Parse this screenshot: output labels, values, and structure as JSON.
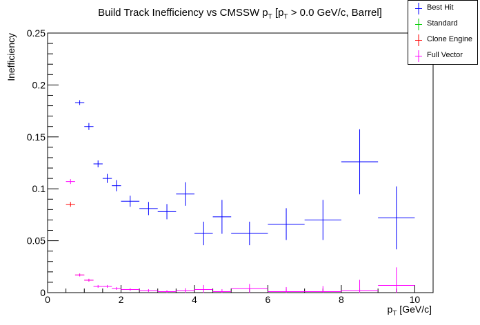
{
  "chart_data": {
    "type": "scatter",
    "title": "Build Track Inefficiency vs CMSSW p_T [p_T > 0.0 GeV/c, Barrel]",
    "title_parts": {
      "main": "Build Track Inefficiency vs CMSSW p",
      "sub1": "T",
      "mid": " [p",
      "sub2": "T",
      "rest": " > 0.0 GeV/c, Barrel]"
    },
    "xlabel": "p_T [GeV/c]",
    "xlabel_parts": {
      "main": "p",
      "sub": "T",
      "rest": " [GeV/c]"
    },
    "ylabel": "Inefficiency",
    "xlim": [
      0,
      10.5
    ],
    "ylim": [
      0,
      0.25
    ],
    "x_ticks": [
      "0",
      "2",
      "4",
      "6",
      "8",
      "10"
    ],
    "y_ticks": [
      "0",
      "0.05",
      "0.1",
      "0.15",
      "0.2",
      "0.25"
    ],
    "grid": false,
    "legend_position": "top-right",
    "series": [
      {
        "name": "Best Hit",
        "color": "#0000ff",
        "points": [
          {
            "x": 0.875,
            "y": 0.183,
            "xerr": 0.125,
            "yerr": 0.002
          },
          {
            "x": 1.125,
            "y": 0.16,
            "xerr": 0.125,
            "yerr": 0.003
          },
          {
            "x": 1.375,
            "y": 0.124,
            "xerr": 0.125,
            "yerr": 0.003
          },
          {
            "x": 1.625,
            "y": 0.11,
            "xerr": 0.125,
            "yerr": 0.004
          },
          {
            "x": 1.875,
            "y": 0.103,
            "xerr": 0.125,
            "yerr": 0.005
          },
          {
            "x": 2.25,
            "y": 0.088,
            "xerr": 0.25,
            "yerr": 0.005
          },
          {
            "x": 2.75,
            "y": 0.081,
            "xerr": 0.25,
            "yerr": 0.006
          },
          {
            "x": 3.25,
            "y": 0.078,
            "xerr": 0.25,
            "yerr": 0.007
          },
          {
            "x": 3.75,
            "y": 0.095,
            "xerr": 0.25,
            "yerr": 0.011
          },
          {
            "x": 4.25,
            "y": 0.057,
            "xerr": 0.25,
            "yerr": 0.011
          },
          {
            "x": 4.75,
            "y": 0.073,
            "xerr": 0.25,
            "yerr": 0.016
          },
          {
            "x": 5.5,
            "y": 0.057,
            "xerr": 0.5,
            "yerr": 0.011
          },
          {
            "x": 6.5,
            "y": 0.066,
            "xerr": 0.5,
            "yerr": 0.015
          },
          {
            "x": 7.5,
            "y": 0.07,
            "xerr": 0.5,
            "yerr": 0.019
          },
          {
            "x": 8.5,
            "y": 0.126,
            "xerr": 0.5,
            "yerr": 0.031
          },
          {
            "x": 9.5,
            "y": 0.072,
            "xerr": 0.5,
            "yerr": 0.03
          }
        ]
      },
      {
        "name": "Standard",
        "color": "#00cc00",
        "points": []
      },
      {
        "name": "Clone Engine",
        "color": "#ff0000",
        "points": [
          {
            "x": 0.625,
            "y": 0.085,
            "xerr": 0.125,
            "yerr": 0.002
          },
          {
            "x": 0.875,
            "y": 0.017,
            "xerr": 0.125,
            "yerr": 0.001
          },
          {
            "x": 1.125,
            "y": 0.012,
            "xerr": 0.125,
            "yerr": 0.001
          }
        ]
      },
      {
        "name": "Full Vector",
        "color": "#ff00ff",
        "points": [
          {
            "x": 0.625,
            "y": 0.107,
            "xerr": 0.125,
            "yerr": 0.002
          },
          {
            "x": 0.875,
            "y": 0.017,
            "xerr": 0.125,
            "yerr": 0.001
          },
          {
            "x": 1.125,
            "y": 0.012,
            "xerr": 0.125,
            "yerr": 0.001
          },
          {
            "x": 1.375,
            "y": 0.006,
            "xerr": 0.125,
            "yerr": 0.001
          },
          {
            "x": 1.625,
            "y": 0.006,
            "xerr": 0.125,
            "yerr": 0.001
          },
          {
            "x": 1.875,
            "y": 0.004,
            "xerr": 0.125,
            "yerr": 0.001
          },
          {
            "x": 2.25,
            "y": 0.003,
            "xerr": 0.25,
            "yerr": 0.001
          },
          {
            "x": 2.75,
            "y": 0.002,
            "xerr": 0.25,
            "yerr": 0.001
          },
          {
            "x": 3.25,
            "y": 0.001,
            "xerr": 0.25,
            "yerr": 0.001
          },
          {
            "x": 3.75,
            "y": 0.002,
            "xerr": 0.25,
            "yerr": 0.002
          },
          {
            "x": 4.25,
            "y": 0.003,
            "xerr": 0.25,
            "yerr": 0.004
          },
          {
            "x": 4.75,
            "y": 0.001,
            "xerr": 0.25,
            "yerr": 0.002
          },
          {
            "x": 5.5,
            "y": 0.004,
            "xerr": 0.5,
            "yerr": 0.004
          },
          {
            "x": 6.5,
            "y": 0.001,
            "xerr": 0.5,
            "yerr": 0.004
          },
          {
            "x": 7.5,
            "y": 0.001,
            "xerr": 0.5,
            "yerr": 0.005
          },
          {
            "x": 8.5,
            "y": 0.002,
            "xerr": 0.5,
            "yerr": 0.01
          },
          {
            "x": 9.5,
            "y": 0.007,
            "xerr": 0.5,
            "yerr": 0.017
          }
        ]
      }
    ]
  }
}
